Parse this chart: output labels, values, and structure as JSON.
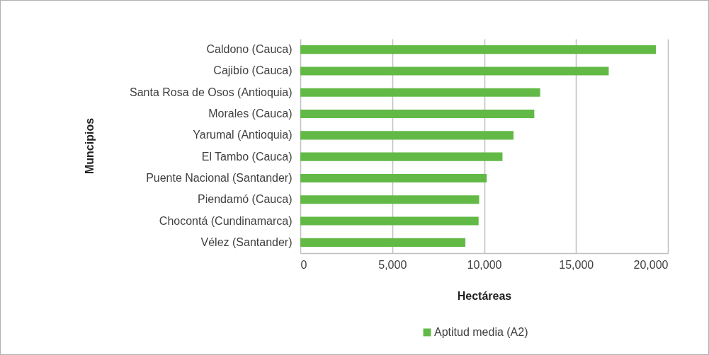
{
  "chart_data": {
    "type": "bar",
    "orientation": "horizontal",
    "xlabel": "Hectáreas",
    "ylabel": "Muncipios",
    "categories": [
      "Caldono (Cauca)",
      "Cajibío (Cauca)",
      "Santa Rosa de Osos (Antioquia)",
      "Morales (Cauca)",
      "Yarumal (Antioquia)",
      "El Tambo (Cauca)",
      "Puente Nacional (Santander)",
      "Piendamó (Cauca)",
      "Chocontá (Cundinamarca)",
      "Vélez (Santander)"
    ],
    "series": [
      {
        "name": "Aptitud media (A2)",
        "color": "#62b946",
        "values": [
          19350,
          16780,
          13050,
          12730,
          11600,
          11000,
          10140,
          9730,
          9700,
          8980
        ]
      }
    ],
    "xlim": [
      0,
      20000
    ],
    "xticks": [
      {
        "value": 0,
        "label": "0"
      },
      {
        "value": 5000,
        "label": "5,000"
      },
      {
        "value": 10000,
        "label": "10,000"
      },
      {
        "value": 15000,
        "label": "15,000"
      },
      {
        "value": 20000,
        "label": "20,000"
      }
    ],
    "grid": "x",
    "legend": "bottom"
  }
}
